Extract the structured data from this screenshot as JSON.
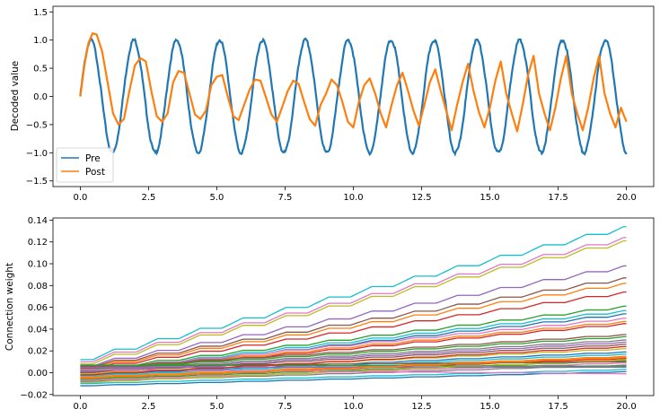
{
  "chart_data": [
    {
      "type": "line",
      "title": "",
      "xlabel": "",
      "ylabel": "Decoded value",
      "xlim": [
        -1.0,
        21.0
      ],
      "ylim": [
        -1.6,
        1.6
      ],
      "xticks": [
        0.0,
        2.5,
        5.0,
        7.5,
        10.0,
        12.5,
        15.0,
        17.5,
        20.0
      ],
      "xtick_labels": [
        "0.0",
        "2.5",
        "5.0",
        "7.5",
        "10.0",
        "12.5",
        "15.0",
        "17.5",
        "20.0"
      ],
      "yticks": [
        -1.5,
        -1.0,
        -0.5,
        0.0,
        0.5,
        1.0,
        1.5
      ],
      "ytick_labels": [
        "−1.5",
        "−1.0",
        "−0.5",
        "0.0",
        "0.5",
        "1.0",
        "1.5"
      ],
      "legend": "lower-left",
      "grid": false,
      "series": [
        {
          "name": "Pre",
          "color": "#1f77b4",
          "description_x_range": [
            0,
            20
          ],
          "x": [
            0,
            0.25,
            0.5,
            0.75,
            1.0,
            1.25,
            1.5,
            1.75,
            2.0,
            2.25,
            2.5,
            2.75,
            3.0,
            3.25,
            3.5,
            3.75,
            4.0,
            4.25,
            4.5,
            4.75,
            5.0,
            5.25,
            5.5,
            5.75,
            6.0,
            6.25,
            6.5,
            6.75,
            7.0,
            7.25,
            7.5,
            7.75,
            8.0,
            8.25,
            8.5,
            8.75,
            9.0,
            9.25,
            9.5,
            9.75,
            10.0,
            10.25,
            10.5,
            10.75,
            11.0,
            11.25,
            11.5,
            11.75,
            12.0,
            12.25,
            12.5,
            12.75,
            13.0,
            13.25,
            13.5,
            13.75,
            14.0,
            14.25,
            14.5,
            14.75,
            15.0,
            15.25,
            15.5,
            15.75,
            16.0,
            16.25,
            16.5,
            16.75,
            17.0,
            17.25,
            17.5,
            17.75,
            18.0,
            18.25,
            18.5,
            18.75,
            19.0,
            19.25,
            19.5,
            19.75,
            20.0
          ],
          "values": [
            0.0,
            0.87,
            0.86,
            0.0,
            -0.86,
            -0.86,
            0.0,
            0.87,
            1.0,
            0.0,
            -0.86,
            -0.87,
            0.0,
            0.87,
            1.0,
            0.0,
            -0.86,
            -0.87,
            0.0,
            0.86,
            1.0,
            0.0,
            -0.87,
            -0.86,
            0.0,
            0.87,
            1.0,
            0.0,
            -0.86,
            -0.86,
            0.0,
            0.87,
            1.0,
            0.0,
            -0.86,
            -0.87,
            0.0,
            0.87,
            1.0,
            0.0,
            -0.86,
            -0.87,
            0.0,
            0.86,
            1.0,
            0.0,
            -0.87,
            -0.86,
            0.0,
            0.87,
            1.0,
            0.0,
            -0.86,
            -0.86,
            0.0,
            0.87,
            1.0,
            0.0,
            -0.86,
            -0.87,
            0.0,
            0.87,
            1.0,
            0.0,
            -0.86,
            -0.87,
            0.0,
            0.86,
            1.0,
            0.0,
            -0.87,
            -0.86,
            0.0,
            0.87,
            1.0,
            0.0,
            -0.86,
            -0.86,
            0.0,
            0.87,
            -0.97
          ]
        },
        {
          "name": "Post",
          "color": "#ff7f0e",
          "x": [
            0.0,
            0.15,
            0.3,
            0.45,
            0.6,
            0.8,
            1.0,
            1.2,
            1.4,
            1.6,
            1.8,
            2.0,
            2.2,
            2.4,
            2.6,
            2.8,
            3.0,
            3.2,
            3.4,
            3.6,
            3.8,
            4.0,
            4.2,
            4.4,
            4.6,
            4.8,
            5.0,
            5.2,
            5.4,
            5.6,
            5.8,
            6.0,
            6.2,
            6.4,
            6.6,
            6.8,
            7.0,
            7.2,
            7.4,
            7.6,
            7.8,
            8.0,
            8.2,
            8.4,
            8.6,
            8.8,
            9.0,
            9.2,
            9.4,
            9.6,
            9.8,
            10.0,
            10.2,
            10.4,
            10.6,
            10.8,
            11.0,
            11.2,
            11.4,
            11.6,
            11.8,
            12.0,
            12.2,
            12.4,
            12.6,
            12.8,
            13.0,
            13.2,
            13.4,
            13.6,
            13.8,
            14.0,
            14.2,
            14.4,
            14.6,
            14.8,
            15.0,
            15.2,
            15.4,
            15.6,
            15.8,
            16.0,
            16.2,
            16.4,
            16.6,
            16.8,
            17.0,
            17.2,
            17.4,
            17.6,
            17.8,
            18.0,
            18.2,
            18.4,
            18.6,
            18.8,
            19.0,
            19.2,
            19.4,
            19.6,
            19.8,
            20.0
          ],
          "values": [
            0.0,
            0.55,
            0.95,
            1.12,
            1.1,
            0.8,
            0.25,
            -0.3,
            -0.5,
            -0.4,
            0.1,
            0.55,
            0.68,
            0.62,
            0.1,
            -0.35,
            -0.45,
            -0.3,
            0.25,
            0.45,
            0.42,
            0.05,
            -0.32,
            -0.4,
            -0.25,
            0.2,
            0.35,
            0.38,
            0.0,
            -0.35,
            -0.42,
            -0.15,
            0.12,
            0.3,
            0.28,
            -0.02,
            -0.32,
            -0.45,
            -0.18,
            0.1,
            0.28,
            0.22,
            -0.1,
            -0.4,
            -0.52,
            -0.15,
            0.05,
            0.3,
            0.2,
            -0.1,
            -0.45,
            -0.55,
            -0.1,
            0.2,
            0.32,
            0.05,
            -0.3,
            -0.55,
            -0.15,
            0.2,
            0.42,
            0.1,
            -0.25,
            -0.52,
            -0.15,
            0.25,
            0.48,
            0.1,
            -0.25,
            -0.6,
            -0.15,
            0.25,
            0.58,
            0.1,
            -0.28,
            -0.55,
            -0.2,
            0.28,
            0.62,
            0.05,
            -0.3,
            -0.62,
            -0.15,
            0.38,
            0.72,
            0.05,
            -0.3,
            -0.6,
            -0.2,
            0.32,
            0.72,
            0.05,
            -0.3,
            -0.6,
            -0.2,
            0.32,
            0.72,
            0.05,
            -0.3,
            -0.55,
            -0.2,
            -0.45
          ]
        }
      ]
    },
    {
      "type": "line",
      "title": "",
      "xlabel": "",
      "ylabel": "Connection weight",
      "xlim": [
        -1.0,
        21.0
      ],
      "ylim": [
        -0.021,
        0.142
      ],
      "xticks": [
        0.0,
        2.5,
        5.0,
        7.5,
        10.0,
        12.5,
        15.0,
        17.5,
        20.0
      ],
      "xtick_labels": [
        "0.0",
        "2.5",
        "5.0",
        "7.5",
        "10.0",
        "12.5",
        "15.0",
        "17.5",
        "20.0"
      ],
      "yticks": [
        -0.02,
        0.0,
        0.02,
        0.04,
        0.06,
        0.08,
        0.1,
        0.12,
        0.14
      ],
      "ytick_labels": [
        "−0.02",
        "0.00",
        "0.02",
        "0.04",
        "0.06",
        "0.08",
        "0.10",
        "0.12",
        "0.14"
      ],
      "grid": false,
      "step_period": 1.57,
      "series": [
        {
          "color": "#17becf",
          "start": 0.012,
          "end": 0.134
        },
        {
          "color": "#e377c2",
          "start": 0.01,
          "end": 0.124
        },
        {
          "color": "#bcbd22",
          "start": 0.008,
          "end": 0.121
        },
        {
          "color": "#9467bd",
          "start": 0.006,
          "end": 0.098
        },
        {
          "color": "#8c564b",
          "start": 0.005,
          "end": 0.087
        },
        {
          "color": "#ff7f0e",
          "start": 0.004,
          "end": 0.082
        },
        {
          "color": "#d62728",
          "start": 0.003,
          "end": 0.074
        },
        {
          "color": "#2ca02c",
          "start": 0.002,
          "end": 0.061
        },
        {
          "color": "#17becf",
          "start": 0.001,
          "end": 0.057
        },
        {
          "color": "#1f77b4",
          "start": 0.0,
          "end": 0.054
        },
        {
          "color": "#e377c2",
          "start": 0.002,
          "end": 0.05
        },
        {
          "color": "#ff7f0e",
          "start": 0.001,
          "end": 0.047
        },
        {
          "color": "#d62728",
          "start": 0.0,
          "end": 0.045
        },
        {
          "color": "#8c564b",
          "start": 0.004,
          "end": 0.035
        },
        {
          "color": "#2ca02c",
          "start": 0.003,
          "end": 0.033
        },
        {
          "color": "#7f7f7f",
          "start": 0.002,
          "end": 0.03
        },
        {
          "color": "#9467bd",
          "start": 0.001,
          "end": 0.028
        },
        {
          "color": "#8c564b",
          "start": 0.0,
          "end": 0.026
        },
        {
          "color": "#bcbd22",
          "start": -0.001,
          "end": 0.022
        },
        {
          "color": "#1f77b4",
          "start": -0.002,
          "end": 0.019
        },
        {
          "color": "#17becf",
          "start": -0.003,
          "end": 0.017
        },
        {
          "color": "#ff7f0e",
          "start": -0.004,
          "end": 0.015
        },
        {
          "color": "#d62728",
          "start": -0.005,
          "end": 0.013
        },
        {
          "color": "#2ca02c",
          "start": -0.006,
          "end": 0.011
        },
        {
          "color": "#e377c2",
          "start": -0.007,
          "end": 0.009
        },
        {
          "color": "#7f7f7f",
          "start": -0.008,
          "end": 0.007
        },
        {
          "color": "#9467bd",
          "start": 0.005,
          "end": 0.005
        },
        {
          "color": "#bcbd22",
          "start": -0.009,
          "end": 0.012
        },
        {
          "color": "#17becf",
          "start": -0.01,
          "end": 0.003
        },
        {
          "color": "#8c564b",
          "start": 0.006,
          "end": 0.01
        },
        {
          "color": "#1f77b4",
          "start": -0.012,
          "end": 0.001
        },
        {
          "color": "#2ca02c",
          "start": 0.007,
          "end": 0.006
        },
        {
          "color": "#e377c2",
          "start": 0.003,
          "end": -0.001
        },
        {
          "color": "#ff7f0e",
          "start": -0.005,
          "end": 0.014
        },
        {
          "color": "#d62728",
          "start": -0.002,
          "end": 0.024
        }
      ]
    }
  ]
}
